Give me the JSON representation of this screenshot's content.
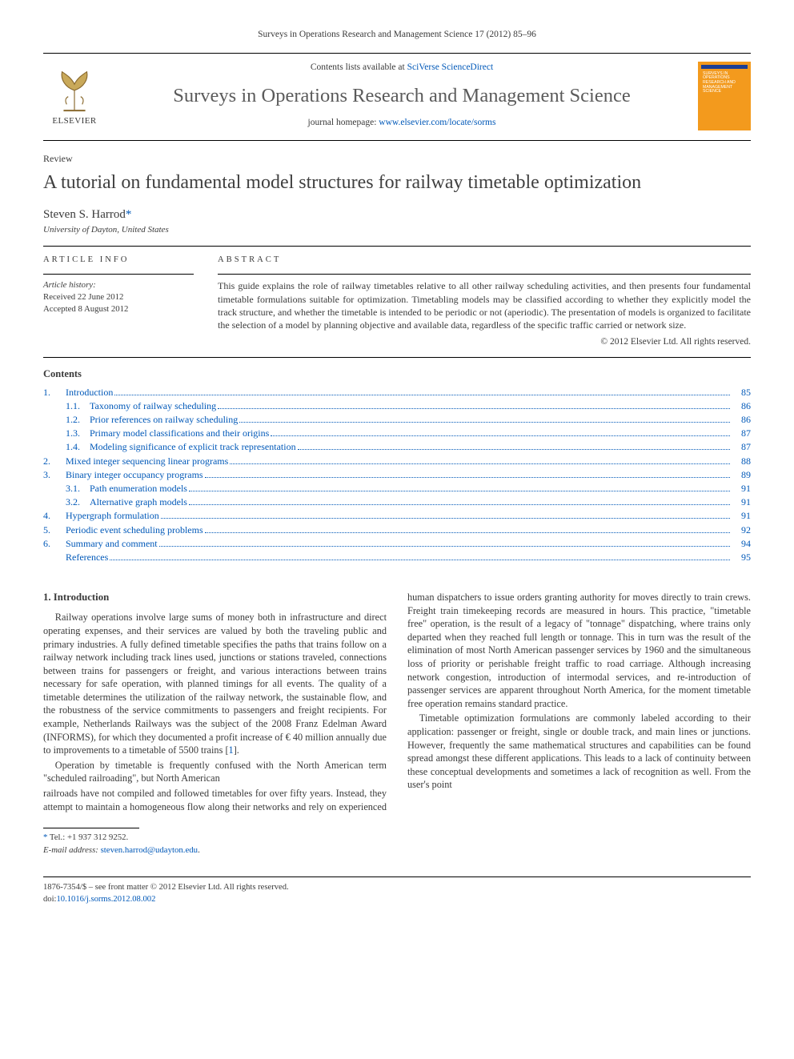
{
  "running_head": "Surveys in Operations Research and Management Science 17 (2012) 85–96",
  "masthead": {
    "contents_prefix": "Contents lists available at ",
    "contents_link": "SciVerse ScienceDirect",
    "journal": "Surveys in Operations Research and Management Science",
    "homepage_prefix": "journal homepage: ",
    "homepage_link": "www.elsevier.com/locate/sorms",
    "publisher_word": "ELSEVIER",
    "cover_text": "SURVEYS IN OPERATIONS RESEARCH AND MANAGEMENT SCIENCE"
  },
  "article": {
    "type": "Review",
    "title": "A tutorial on fundamental model structures for railway timetable optimization",
    "author": "Steven S. Harrod",
    "corr_mark": "*",
    "affiliation": "University of Dayton, United States"
  },
  "info_head": "ARTICLE INFO",
  "abs_head": "ABSTRACT",
  "history": {
    "label": "Article history:",
    "received": "Received 22 June 2012",
    "accepted": "Accepted 8 August 2012"
  },
  "abstract": "This guide explains the role of railway timetables relative to all other railway scheduling activities, and then presents four fundamental timetable formulations suitable for optimization. Timetabling models may be classified according to whether they explicitly model the track structure, and whether the timetable is intended to be periodic or not (aperiodic). The presentation of models is organized to facilitate the selection of a model by planning objective and available data, regardless of the specific traffic carried or network size.",
  "copyright": "© 2012 Elsevier Ltd. All rights reserved.",
  "contents_label": "Contents",
  "toc": [
    {
      "n": "1.",
      "t": "Introduction",
      "p": "85",
      "sub": [
        {
          "n": "1.1.",
          "t": "Taxonomy of railway scheduling",
          "p": "86"
        },
        {
          "n": "1.2.",
          "t": "Prior references on railway scheduling",
          "p": "86"
        },
        {
          "n": "1.3.",
          "t": "Primary model classifications and their origins",
          "p": "87"
        },
        {
          "n": "1.4.",
          "t": "Modeling significance of explicit track representation",
          "p": "87"
        }
      ]
    },
    {
      "n": "2.",
      "t": "Mixed integer sequencing linear programs",
      "p": "88",
      "sub": []
    },
    {
      "n": "3.",
      "t": "Binary integer occupancy programs",
      "p": "89",
      "sub": [
        {
          "n": "3.1.",
          "t": "Path enumeration models",
          "p": "91"
        },
        {
          "n": "3.2.",
          "t": "Alternative graph models",
          "p": "91"
        }
      ]
    },
    {
      "n": "4.",
      "t": "Hypergraph formulation",
      "p": "91",
      "sub": []
    },
    {
      "n": "5.",
      "t": "Periodic event scheduling problems",
      "p": "92",
      "sub": []
    },
    {
      "n": "6.",
      "t": "Summary and comment",
      "p": "94",
      "sub": []
    },
    {
      "n": "",
      "t": "References",
      "p": "95",
      "sub": []
    }
  ],
  "body": {
    "h_intro": "1. Introduction",
    "p1": "Railway operations involve large sums of money both in infrastructure and direct operating expenses, and their services are valued by both the traveling public and primary industries. A fully defined timetable specifies the paths that trains follow on a railway network including track lines used, junctions or stations traveled, connections between trains for passengers or freight, and various interactions between trains necessary for safe operation, with planned timings for all events. The quality of a timetable determines the utilization of the railway network, the sustainable flow, and the robustness of the service commitments to passengers and freight recipients. For example, Netherlands Railways was the subject of the 2008 Franz Edelman Award (INFORMS), for which they documented a profit increase of € 40 million annually due to improvements to a timetable of 5500 trains [",
    "p1_ref": "1",
    "p1_tail": "].",
    "p2": "Operation by timetable is frequently confused with the North American term \"scheduled railroading\", but North American",
    "p3": "railroads have not compiled and followed timetables for over fifty years. Instead, they attempt to maintain a homogeneous flow along their networks and rely on experienced human dispatchers to issue orders granting authority for moves directly to train crews. Freight train timekeeping records are measured in hours. This practice, \"timetable free\" operation, is the result of a legacy of \"tonnage\" dispatching, where trains only departed when they reached full length or tonnage. This in turn was the result of the elimination of most North American passenger services by 1960 and the simultaneous loss of priority or perishable freight traffic to road carriage. Although increasing network congestion, introduction of intermodal services, and re-introduction of passenger services are apparent throughout North America, for the moment timetable free operation remains standard practice.",
    "p4": "Timetable optimization formulations are commonly labeled according to their application: passenger or freight, single or double track, and main lines or junctions. However, frequently the same mathematical structures and capabilities can be found spread amongst these different applications. This leads to a lack of continuity between these conceptual developments and sometimes a lack of recognition as well. From the user's point"
  },
  "footer": {
    "corr": "Tel.: +1 937 312 9252.",
    "email_label": "E-mail address:",
    "email": "steven.harrod@udayton.edu",
    "email_tail": ".",
    "issn_line": "1876-7354/$ – see front matter © 2012 Elsevier Ltd. All rights reserved.",
    "doi_label": "doi:",
    "doi": "10.1016/j.sorms.2012.08.002"
  },
  "colors": {
    "link": "#0058b8",
    "text": "#3a3a3a",
    "cover_bg": "#f39a1d",
    "cover_bar": "#1c3f94"
  }
}
